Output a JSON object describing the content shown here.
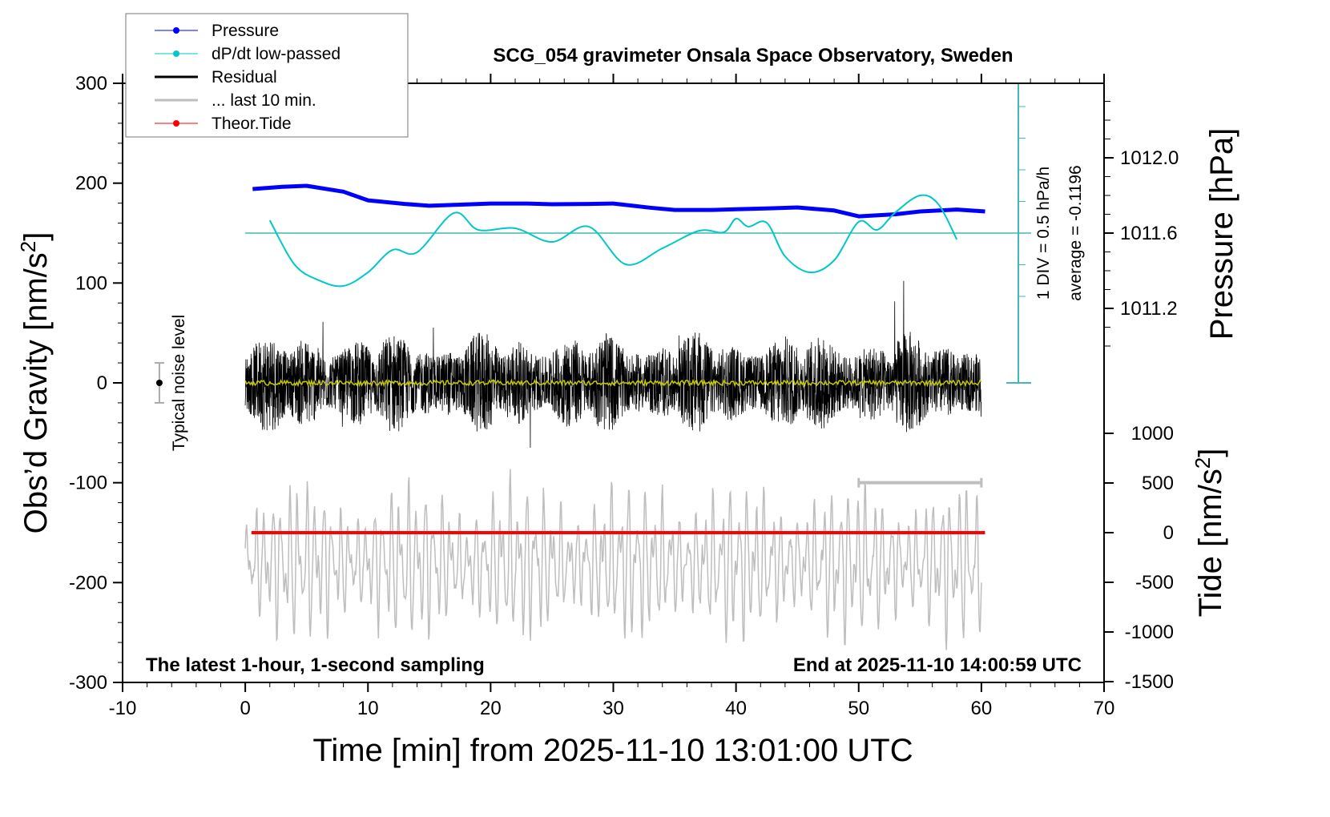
{
  "chart_data": {
    "type": "line",
    "title": "SCG_054 gravimeter Onsala Space Observatory, Sweden",
    "xlabel": "Time [min] from 2025-11-10 13:01:00 UTC",
    "ylabel": "Obs'd Gravity [nm/s²]",
    "ylabel_main": "Obs’d Gravity [nm/s",
    "ylabel_sup": "2",
    "ylabel_close": "]",
    "y2label": "Pressure [hPa]",
    "y3label_main": "Tide [nm/s",
    "y3label_sup": "2",
    "y3label_close": "]",
    "xlim": [
      -10,
      70
    ],
    "ylim": [
      -300,
      300
    ],
    "xticks": [
      -10,
      0,
      10,
      20,
      30,
      40,
      50,
      60,
      70
    ],
    "yticks": [
      -300,
      -200,
      -100,
      0,
      100,
      200,
      300
    ],
    "pressure_ticks": [
      "1012.0",
      "1011.6",
      "1011.2"
    ],
    "pressure_tick_values": [
      1012.0,
      1011.6,
      1011.2
    ],
    "tide_ticks": [
      1000,
      500,
      0,
      -500,
      -1000,
      -1500
    ],
    "annotations": {
      "bottom_left": "The latest 1-hour, 1-second sampling",
      "bottom_right": "End at 2025-11-10 14:00:59 UTC",
      "dpdt_scale": "1 DIV = 0.5 hPa/h",
      "dpdt_average": "average = -0.1196",
      "noise_label": "Typical noise level"
    },
    "legend": {
      "placement": "top-left",
      "entries": [
        {
          "label": "Pressure",
          "color": "#0000ff",
          "marker": true
        },
        {
          "label": "dP/dt low-passed",
          "color": "#00c8c8",
          "marker": true
        },
        {
          "label": "Residual",
          "color": "#000000",
          "marker": false
        },
        {
          "label": "... last 10 min.",
          "color": "#bebebe",
          "marker": false
        },
        {
          "label": "Theor.Tide",
          "color": "#ff0000",
          "marker": true
        }
      ]
    },
    "series": [
      {
        "name": "Pressure",
        "unit": "hPa",
        "color": "#0000ff",
        "x": [
          0.6,
          3,
          5,
          8,
          10,
          13,
          15,
          18,
          20,
          23,
          25,
          28,
          30,
          33,
          35,
          38,
          40,
          43,
          45,
          48,
          50,
          53,
          55,
          58,
          60.3
        ],
        "values": [
          1011.834,
          1011.846,
          1011.851,
          1011.82,
          1011.774,
          1011.755,
          1011.745,
          1011.752,
          1011.757,
          1011.757,
          1011.753,
          1011.755,
          1011.757,
          1011.735,
          1011.723,
          1011.723,
          1011.727,
          1011.732,
          1011.736,
          1011.72,
          1011.689,
          1011.7,
          1011.715,
          1011.725,
          1011.715
        ]
      },
      {
        "name": "dP/dt low-passed",
        "unit": "hPa/h",
        "color": "#00c8c8",
        "average": -0.1196,
        "x": [
          2,
          4,
          6,
          8,
          10,
          12,
          14,
          17,
          19,
          22,
          25,
          28,
          31,
          34,
          37,
          39,
          40,
          41,
          42.5,
          44,
          46,
          48,
          50,
          51.5,
          53,
          55,
          56.5,
          58
        ],
        "values": [
          0.083,
          -0.613,
          -0.866,
          -0.955,
          -0.74,
          -0.386,
          -0.423,
          0.197,
          -0.069,
          -0.044,
          -0.259,
          -0.018,
          -0.613,
          -0.36,
          -0.082,
          -0.107,
          0.108,
          -0.018,
          0.045,
          -0.487,
          -0.74,
          -0.55,
          0.058,
          -0.069,
          0.209,
          0.475,
          0.336,
          -0.221
        ]
      },
      {
        "name": "Residual",
        "unit": "nm/s²",
        "color": "#000000",
        "range": [
          0,
          60
        ],
        "typical_amplitude": 40,
        "max_abs": 110
      },
      {
        "name": "Residual smoothed",
        "color": "#c8c800",
        "value": 0
      },
      {
        "name": "... last 10 min.",
        "color": "#bebebe",
        "window": [
          50,
          60
        ],
        "offset": -180
      },
      {
        "name": "Theor.Tide",
        "unit": "nm/s²",
        "color": "#ff0000",
        "x": [
          0.5,
          60.3
        ],
        "values": [
          0,
          0
        ]
      }
    ],
    "noise_level": {
      "x": -7,
      "center": 0,
      "halfwidth": 20
    }
  }
}
